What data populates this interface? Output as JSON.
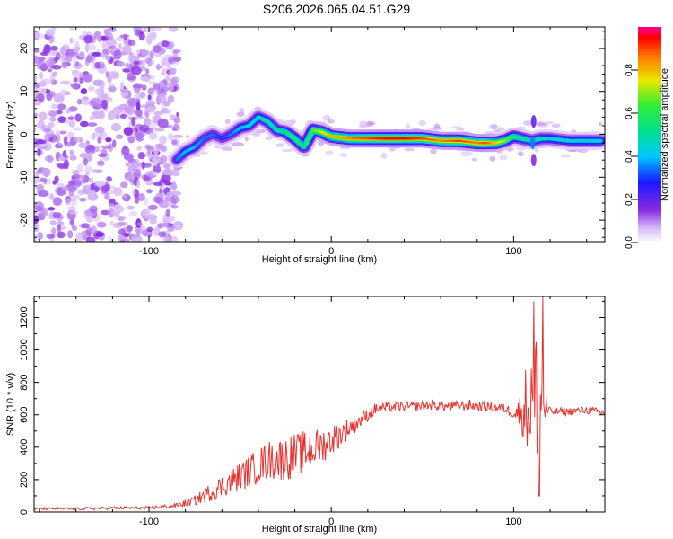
{
  "title": "S206.2026.065.04.51.G29",
  "chart_data": [
    {
      "type": "heatmap",
      "xlabel": "Height of straight line (km)",
      "ylabel": "Frequency (Hz)",
      "xlim": [
        -163,
        150
      ],
      "ylim": [
        -25,
        25
      ],
      "xticks": [
        -100,
        0,
        100
      ],
      "xtick_labels": [
        "-100",
        "0",
        "100"
      ],
      "yticks": [
        -20,
        -10,
        0,
        10,
        20
      ],
      "ytick_labels": [
        "-20",
        "-10",
        "0",
        "10",
        "20"
      ],
      "colorbar": {
        "label": "Normalized spectral amplitude",
        "range": [
          0,
          1
        ],
        "ticks": [
          0.0,
          0.2,
          0.4,
          0.6,
          0.8
        ],
        "tick_labels": [
          "0.0",
          "0.2",
          "0.4",
          "0.6",
          "0.8"
        ]
      },
      "ridge": {
        "x": [
          -85,
          -80,
          -75,
          -70,
          -65,
          -60,
          -55,
          -50,
          -45,
          -40,
          -35,
          -30,
          -25,
          -20,
          -15,
          -10,
          -5,
          0,
          10,
          20,
          30,
          40,
          50,
          60,
          70,
          80,
          85,
          90,
          95,
          100,
          105,
          110,
          115,
          120,
          130,
          140,
          148
        ],
        "freq": [
          -6,
          -4,
          -3,
          -1,
          0,
          -1,
          0,
          1.5,
          2,
          4,
          3,
          1,
          0.5,
          -1,
          -3,
          1,
          0.5,
          -0.5,
          -1,
          -1,
          -1,
          -1,
          -1,
          -1.5,
          -1.5,
          -2,
          -2,
          -2,
          -1.5,
          -0.5,
          -1,
          -1.5,
          -1,
          -1,
          -1.5,
          -1.5,
          -1.5
        ],
        "amplitude": [
          0.35,
          0.4,
          0.4,
          0.35,
          0.35,
          0.3,
          0.35,
          0.4,
          0.45,
          0.45,
          0.5,
          0.5,
          0.55,
          0.6,
          0.55,
          0.65,
          0.75,
          0.8,
          0.85,
          0.9,
          0.95,
          0.95,
          0.9,
          0.85,
          0.9,
          0.85,
          0.9,
          0.8,
          0.7,
          0.6,
          0.55,
          0.5,
          0.5,
          0.45,
          0.45,
          0.45,
          0.45
        ]
      },
      "noise_region_x": [
        -163,
        -88
      ]
    },
    {
      "type": "line",
      "xlabel": "Height of straight line (km)",
      "ylabel": "SNR (10 * v/v)",
      "xlim": [
        -163,
        150
      ],
      "ylim": [
        0,
        1330
      ],
      "xticks": [
        -100,
        0,
        100
      ],
      "xtick_labels": [
        "-100",
        "0",
        "100"
      ],
      "yticks": [
        0,
        200,
        400,
        600,
        800,
        1000,
        1200
      ],
      "ytick_labels": [
        "0",
        "200",
        "400",
        "600",
        "800",
        "1000",
        "1200"
      ],
      "color": "#e8322f",
      "envelope": {
        "x": [
          -163,
          -140,
          -120,
          -100,
          -85,
          -75,
          -65,
          -55,
          -45,
          -35,
          -25,
          -15,
          -5,
          5,
          15,
          25,
          35,
          45,
          55,
          65,
          75,
          85,
          95,
          100,
          105,
          108,
          111,
          114,
          117,
          120,
          130,
          140,
          150
        ],
        "snr": [
          20,
          20,
          25,
          25,
          40,
          70,
          130,
          190,
          250,
          320,
          330,
          370,
          410,
          480,
          560,
          640,
          650,
          650,
          660,
          650,
          660,
          650,
          640,
          610,
          620,
          680,
          700,
          780,
          640,
          620,
          620,
          630,
          610
        ],
        "noise": [
          8,
          8,
          10,
          10,
          15,
          30,
          60,
          80,
          100,
          120,
          140,
          130,
          110,
          80,
          50,
          35,
          30,
          30,
          30,
          30,
          35,
          30,
          30,
          30,
          150,
          350,
          500,
          450,
          120,
          25,
          25,
          25,
          25
        ]
      },
      "peaks": [
        {
          "x": 111,
          "snr": 1300
        },
        {
          "x": 114,
          "snr": 100
        },
        {
          "x": 116,
          "snr": 1330
        }
      ]
    }
  ]
}
